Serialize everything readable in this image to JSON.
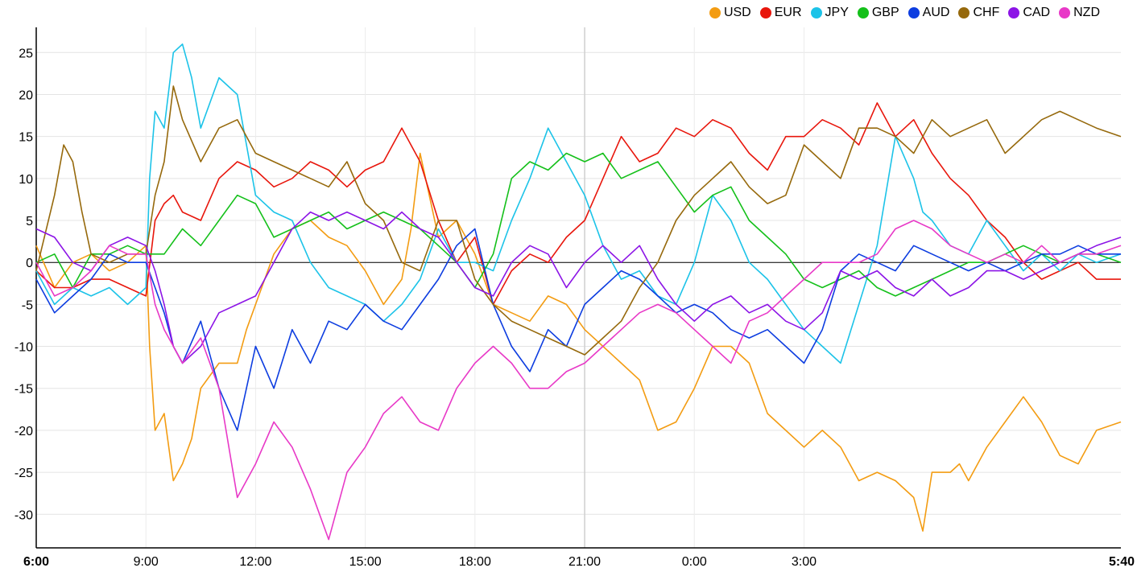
{
  "chart_data": {
    "type": "line",
    "ylim": [
      -34,
      28
    ],
    "y_ticks": [
      25,
      20,
      15,
      10,
      5,
      0,
      -5,
      -10,
      -15,
      -20,
      -25,
      -30
    ],
    "x_ticks": [
      "6:00",
      "9:00",
      "12:00",
      "15:00",
      "18:00",
      "21:00",
      "0:00",
      "3:00",
      "5:40"
    ],
    "x_ticks_bold": [
      "6:00",
      "5:40"
    ],
    "x_hours": [
      0,
      3,
      6,
      9,
      12,
      15,
      18,
      21,
      24,
      27,
      29.667
    ],
    "grid": true,
    "legend_position": "top-right",
    "series": [
      {
        "name": "USD",
        "color": "#f39c12",
        "x": [
          0,
          0.5,
          1,
          1.5,
          2,
          2.5,
          3,
          3.1,
          3.25,
          3.5,
          3.75,
          4,
          4.25,
          4.5,
          5,
          5.5,
          5.75,
          6,
          6.5,
          7,
          7.5,
          8,
          8.5,
          9,
          9.5,
          10,
          10.25,
          10.5,
          11,
          11.5,
          12,
          12.5,
          13,
          13.5,
          14,
          14.5,
          15,
          15.5,
          16,
          16.5,
          17,
          17.5,
          18,
          18.5,
          19,
          19.5,
          20,
          20.5,
          21,
          21.5,
          22,
          22.5,
          23,
          23.5,
          24,
          24.25,
          24.5,
          25,
          25.25,
          25.5,
          26,
          26.5,
          27,
          27.5,
          28,
          28.5,
          29,
          29.667
        ],
        "y": [
          2,
          -3,
          0,
          1,
          -1,
          0,
          2,
          -10,
          -20,
          -18,
          -26,
          -24,
          -21,
          -15,
          -12,
          -12,
          -8,
          -5,
          1,
          4,
          5,
          3,
          2,
          -1,
          -5,
          -2,
          4,
          13,
          3,
          5,
          1,
          -5,
          -6,
          -7,
          -4,
          -5,
          -8,
          -10,
          -12,
          -14,
          -20,
          -19,
          -15,
          -10,
          -10,
          -12,
          -18,
          -20,
          -22,
          -20,
          -22,
          -26,
          -25,
          -26,
          -28,
          -32,
          -25,
          -25,
          -24,
          -26,
          -22,
          -19,
          -16,
          -19,
          -23,
          -24,
          -20,
          -19
        ]
      },
      {
        "name": "EUR",
        "color": "#e8160c",
        "x": [
          0,
          0.5,
          1,
          1.5,
          2,
          2.5,
          3,
          3.25,
          3.5,
          3.75,
          4,
          4.5,
          5,
          5.5,
          6,
          6.5,
          7,
          7.5,
          8,
          8.5,
          9,
          9.5,
          10,
          10.5,
          11,
          11.5,
          12,
          12.5,
          13,
          13.5,
          14,
          14.5,
          15,
          15.5,
          16,
          16.5,
          17,
          17.5,
          18,
          18.5,
          19,
          19.5,
          20,
          20.5,
          21,
          21.5,
          22,
          22.5,
          23,
          23.5,
          24,
          24.5,
          25,
          25.5,
          26,
          26.5,
          27,
          27.5,
          28,
          28.5,
          29,
          29.667
        ],
        "y": [
          -1,
          -3,
          -3,
          -2,
          -2,
          -3,
          -4,
          5,
          7,
          8,
          6,
          5,
          10,
          12,
          11,
          9,
          10,
          12,
          11,
          9,
          11,
          12,
          16,
          12,
          5,
          0,
          3,
          -5,
          -1,
          1,
          0,
          3,
          5,
          10,
          15,
          12,
          13,
          16,
          15,
          17,
          16,
          13,
          11,
          15,
          15,
          17,
          16,
          14,
          19,
          15,
          17,
          13,
          10,
          8,
          5,
          3,
          0,
          -2,
          -1,
          0,
          -2,
          -2
        ]
      },
      {
        "name": "JPY",
        "color": "#1cc3e8",
        "x": [
          0,
          0.5,
          1,
          1.5,
          2,
          2.5,
          3,
          3.1,
          3.25,
          3.5,
          3.75,
          4,
          4.25,
          4.5,
          5,
          5.5,
          5.75,
          6,
          6.5,
          7,
          7.5,
          8,
          8.5,
          9,
          9.5,
          10,
          10.5,
          11,
          11.5,
          12,
          12.5,
          13,
          13.5,
          14,
          14.5,
          15,
          15.5,
          16,
          16.5,
          17,
          17.5,
          18,
          18.5,
          19,
          19.5,
          20,
          20.5,
          21,
          21.5,
          22,
          22.5,
          23,
          23.5,
          24,
          24.25,
          24.5,
          25,
          25.5,
          26,
          26.5,
          27,
          27.5,
          28,
          28.5,
          29,
          29.667
        ],
        "y": [
          -1,
          -5,
          -3,
          -4,
          -3,
          -5,
          -3,
          10,
          18,
          16,
          25,
          26,
          22,
          16,
          22,
          20,
          14,
          8,
          6,
          5,
          0,
          -3,
          -4,
          -5,
          -7,
          -5,
          -2,
          4,
          0,
          0,
          -1,
          5,
          10,
          16,
          12,
          8,
          2,
          -2,
          -1,
          -4,
          -5,
          0,
          8,
          5,
          0,
          -2,
          -5,
          -8,
          -10,
          -12,
          -5,
          2,
          15,
          10,
          6,
          5,
          2,
          1,
          5,
          2,
          -1,
          1,
          -1,
          1,
          0,
          1
        ]
      },
      {
        "name": "GBP",
        "color": "#14c01a",
        "x": [
          0,
          0.5,
          1,
          1.5,
          2,
          2.5,
          3,
          3.5,
          4,
          4.5,
          5,
          5.5,
          6,
          6.5,
          7,
          7.5,
          8,
          8.5,
          9,
          9.5,
          10,
          10.5,
          11,
          11.5,
          12,
          12.5,
          13,
          13.5,
          14,
          14.5,
          15,
          15.5,
          16,
          16.5,
          17,
          17.5,
          18,
          18.5,
          19,
          19.5,
          20,
          20.5,
          21,
          21.5,
          22,
          22.5,
          23,
          23.5,
          24,
          24.5,
          25,
          25.5,
          26,
          26.5,
          27,
          27.5,
          28,
          28.5,
          29,
          29.667
        ],
        "y": [
          0,
          1,
          -3,
          1,
          1,
          2,
          1,
          1,
          4,
          2,
          5,
          8,
          7,
          3,
          4,
          5,
          6,
          4,
          5,
          6,
          5,
          4,
          2,
          0,
          -3,
          1,
          10,
          12,
          11,
          13,
          12,
          13,
          10,
          11,
          12,
          9,
          6,
          8,
          9,
          5,
          3,
          1,
          -2,
          -3,
          -2,
          -1,
          -3,
          -4,
          -3,
          -2,
          -1,
          0,
          0,
          1,
          2,
          1,
          0,
          1,
          1,
          0
        ]
      },
      {
        "name": "AUD",
        "color": "#0d3de0",
        "x": [
          0,
          0.5,
          1,
          1.5,
          2,
          2.5,
          3,
          3.25,
          3.5,
          3.75,
          4,
          4.5,
          5,
          5.5,
          6,
          6.5,
          7,
          7.5,
          8,
          8.5,
          9,
          9.5,
          10,
          10.5,
          11,
          11.5,
          12,
          12.5,
          13,
          13.5,
          14,
          14.5,
          15,
          15.5,
          16,
          16.5,
          17,
          17.5,
          18,
          18.5,
          19,
          19.5,
          20,
          20.5,
          21,
          21.5,
          22,
          22.5,
          23,
          23.5,
          24,
          24.5,
          25,
          25.5,
          26,
          26.5,
          27,
          27.5,
          28,
          28.5,
          29,
          29.667
        ],
        "y": [
          -2,
          -6,
          -4,
          -2,
          1,
          0,
          0,
          -3,
          -6,
          -10,
          -12,
          -7,
          -15,
          -20,
          -10,
          -15,
          -8,
          -12,
          -7,
          -8,
          -5,
          -7,
          -8,
          -5,
          -2,
          2,
          4,
          -5,
          -10,
          -13,
          -8,
          -10,
          -5,
          -3,
          -1,
          -2,
          -4,
          -6,
          -5,
          -6,
          -8,
          -9,
          -8,
          -10,
          -12,
          -8,
          -1,
          1,
          0,
          -1,
          2,
          1,
          0,
          -1,
          0,
          -1,
          0,
          1,
          1,
          2,
          1,
          1
        ]
      },
      {
        "name": "CHF",
        "color": "#96690c",
        "x": [
          0,
          0.5,
          0.75,
          1,
          1.25,
          1.5,
          2,
          2.5,
          3,
          3.25,
          3.5,
          3.75,
          4,
          4.5,
          5,
          5.5,
          6,
          6.5,
          7,
          7.5,
          8,
          8.5,
          9,
          9.5,
          10,
          10.5,
          11,
          11.5,
          12,
          12.5,
          13,
          13.5,
          14,
          14.5,
          15,
          15.5,
          16,
          16.5,
          17,
          17.5,
          18,
          18.5,
          19,
          19.5,
          20,
          20.5,
          21,
          21.5,
          22,
          22.5,
          23,
          23.5,
          24,
          24.5,
          25,
          25.5,
          26,
          26.5,
          27,
          27.5,
          28,
          28.5,
          29,
          29.667
        ],
        "y": [
          -1,
          8,
          14,
          12,
          6,
          1,
          0,
          1,
          1,
          8,
          12,
          21,
          17,
          12,
          16,
          17,
          13,
          12,
          11,
          10,
          9,
          12,
          7,
          5,
          0,
          -1,
          5,
          5,
          -2,
          -5,
          -7,
          -8,
          -9,
          -10,
          -11,
          -9,
          -7,
          -3,
          0,
          5,
          8,
          10,
          12,
          9,
          7,
          8,
          14,
          12,
          10,
          16,
          16,
          15,
          13,
          17,
          15,
          16,
          17,
          13,
          15,
          17,
          18,
          17,
          16,
          15
        ]
      },
      {
        "name": "CAD",
        "color": "#8c14e6",
        "x": [
          0,
          0.5,
          1,
          1.5,
          2,
          2.5,
          3,
          3.25,
          3.5,
          3.75,
          4,
          4.5,
          5,
          5.5,
          6,
          6.5,
          7,
          7.5,
          8,
          8.5,
          9,
          9.5,
          10,
          10.5,
          11,
          11.5,
          12,
          12.5,
          13,
          13.5,
          14,
          14.5,
          15,
          15.5,
          16,
          16.5,
          17,
          17.5,
          18,
          18.5,
          19,
          19.5,
          20,
          20.5,
          21,
          21.5,
          22,
          22.5,
          23,
          23.5,
          24,
          24.5,
          25,
          25.5,
          26,
          26.5,
          27,
          27.5,
          28,
          28.5,
          29,
          29.667
        ],
        "y": [
          4,
          3,
          0,
          -1,
          2,
          3,
          2,
          -1,
          -5,
          -10,
          -12,
          -10,
          -6,
          -5,
          -4,
          0,
          4,
          6,
          5,
          6,
          5,
          4,
          6,
          4,
          3,
          0,
          -3,
          -4,
          0,
          2,
          1,
          -3,
          0,
          2,
          0,
          2,
          -2,
          -5,
          -7,
          -5,
          -4,
          -6,
          -5,
          -7,
          -8,
          -6,
          -1,
          -2,
          -1,
          -3,
          -4,
          -2,
          -4,
          -3,
          -1,
          -1,
          -2,
          -1,
          0,
          1,
          2,
          3
        ]
      },
      {
        "name": "NZD",
        "color": "#e839c7",
        "x": [
          0,
          0.5,
          1,
          1.5,
          2,
          2.5,
          3,
          3.25,
          3.5,
          3.75,
          4,
          4.5,
          5,
          5.5,
          6,
          6.5,
          7,
          7.5,
          8,
          8.5,
          9,
          9.5,
          10,
          10.5,
          11,
          11.5,
          12,
          12.5,
          13,
          13.5,
          14,
          14.5,
          15,
          15.5,
          16,
          16.5,
          17,
          17.5,
          18,
          18.5,
          19,
          19.5,
          20,
          20.5,
          21,
          21.5,
          22,
          22.5,
          23,
          23.5,
          24,
          24.5,
          25,
          25.5,
          26,
          26.5,
          27,
          27.5,
          28,
          28.5,
          29,
          29.667
        ],
        "y": [
          0,
          -4,
          -3,
          -1,
          2,
          1,
          1,
          -5,
          -8,
          -10,
          -12,
          -9,
          -15,
          -28,
          -24,
          -19,
          -22,
          -27,
          -33,
          -25,
          -22,
          -18,
          -16,
          -19,
          -20,
          -15,
          -12,
          -10,
          -12,
          -15,
          -15,
          -13,
          -12,
          -10,
          -8,
          -6,
          -5,
          -6,
          -8,
          -10,
          -12,
          -7,
          -6,
          -4,
          -2,
          0,
          0,
          0,
          1,
          4,
          5,
          4,
          2,
          1,
          0,
          1,
          0,
          2,
          0,
          1,
          1,
          2
        ]
      }
    ]
  }
}
